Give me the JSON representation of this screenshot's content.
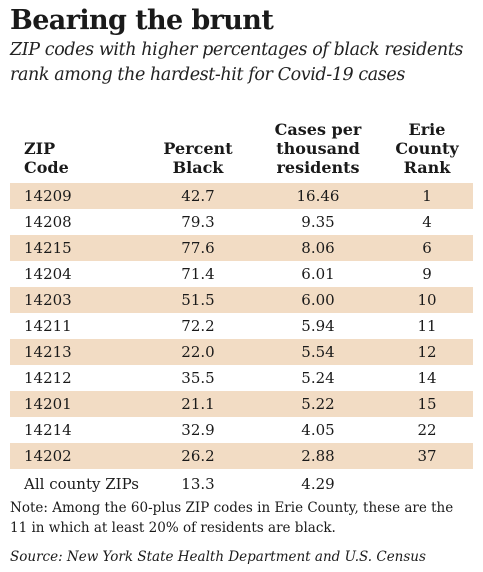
{
  "title": "Bearing the brunt",
  "subtitle_line1": "ZIP codes with higher percentages of black residents",
  "subtitle_line2": "rank among the hardest-hit for Covid-19 cases",
  "colors": {
    "row_shade": "#f2dcc4",
    "text": "#1a1a1a"
  },
  "headers": {
    "zip": [
      "ZIP",
      "Code"
    ],
    "pct": [
      "Percent",
      "Black"
    ],
    "cases": [
      "Cases per",
      "thousand",
      "residents"
    ],
    "rank": [
      "Erie",
      "County",
      "Rank"
    ]
  },
  "rows": [
    {
      "zip": "14209",
      "pct": "42.7",
      "cases": "16.46",
      "rank": "1"
    },
    {
      "zip": "14208",
      "pct": "79.3",
      "cases": "9.35",
      "rank": "4"
    },
    {
      "zip": "14215",
      "pct": "77.6",
      "cases": "8.06",
      "rank": "6"
    },
    {
      "zip": "14204",
      "pct": "71.4",
      "cases": "6.01",
      "rank": "9"
    },
    {
      "zip": "14203",
      "pct": "51.5",
      "cases": "6.00",
      "rank": "10"
    },
    {
      "zip": "14211",
      "pct": "72.2",
      "cases": "5.94",
      "rank": "11"
    },
    {
      "zip": "14213",
      "pct": "22.0",
      "cases": "5.54",
      "rank": "12"
    },
    {
      "zip": "14212",
      "pct": "35.5",
      "cases": "5.24",
      "rank": "14"
    },
    {
      "zip": "14201",
      "pct": "21.1",
      "cases": "5.22",
      "rank": "15"
    },
    {
      "zip": "14214",
      "pct": "32.9",
      "cases": "4.05",
      "rank": "22"
    },
    {
      "zip": "14202",
      "pct": "26.2",
      "cases": "2.88",
      "rank": "37"
    }
  ],
  "total": {
    "zip": "All county ZIPs",
    "pct": "13.3",
    "cases": "4.29",
    "rank": ""
  },
  "note_line1": "Note: Among the 60-plus ZIP codes in Erie County, these are the",
  "note_line2": "11 in which at least 20% of residents are black.",
  "source": "Source: New York State Health Department and U.S. Census"
}
